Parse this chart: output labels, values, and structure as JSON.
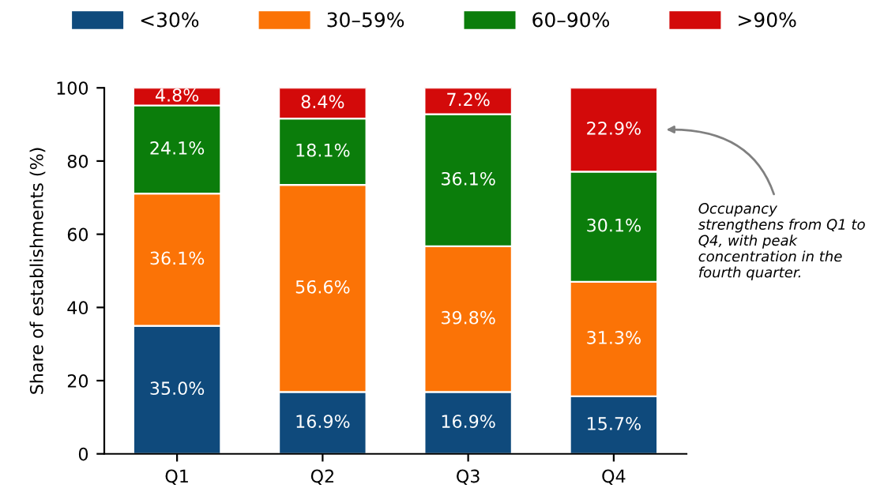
{
  "chart_data": {
    "type": "bar",
    "stacked": true,
    "ylabel": "Share of establishments (%)",
    "categories": [
      "Q1",
      "Q2",
      "Q3",
      "Q4"
    ],
    "series": [
      {
        "name": "<30%",
        "color": "#0f4a7c",
        "values": [
          35.0,
          16.9,
          16.9,
          15.7
        ],
        "value_labels": [
          "35.0%",
          "16.9%",
          "16.9%",
          "15.7%"
        ]
      },
      {
        "name": "30–59%",
        "color": "#fb7306",
        "values": [
          36.1,
          56.6,
          39.8,
          31.3
        ],
        "value_labels": [
          "36.1%",
          "56.6%",
          "39.8%",
          "31.3%"
        ]
      },
      {
        "name": "60–90%",
        "color": "#0b7d0b",
        "values": [
          24.1,
          18.1,
          36.1,
          30.1
        ],
        "value_labels": [
          "24.1%",
          "18.1%",
          "36.1%",
          "30.1%"
        ]
      },
      {
        "name": ">90%",
        "color": "#d30a0a",
        "values": [
          4.8,
          8.4,
          7.2,
          22.9
        ],
        "value_labels": [
          "4.8%",
          "8.4%",
          "7.2%",
          "22.9%"
        ]
      }
    ],
    "ylim": [
      0,
      100
    ],
    "yticks": [
      0,
      20,
      40,
      60,
      80,
      100
    ],
    "grid": false,
    "legend": "top",
    "annotations": [
      "Occupancy strengthens from Q1 to Q4, with peak concentration in the fourth quarter."
    ]
  }
}
